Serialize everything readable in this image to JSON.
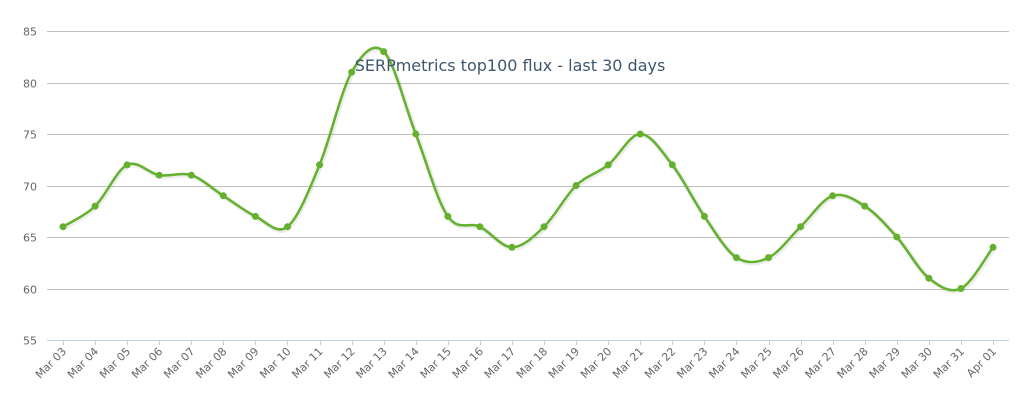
{
  "colors": {
    "series": "#63b12c",
    "grid": "#c0c0c0",
    "axis": "#c0d0e0",
    "title": "#3e576f",
    "tick_label": "#666666"
  },
  "chart_data": {
    "type": "line",
    "title": "SERPmetrics top100 flux - last 30 days",
    "xlabel": "",
    "ylabel": "",
    "ylim": [
      55,
      85
    ],
    "yticks": [
      "55",
      "60",
      "65",
      "70",
      "75",
      "80",
      "85"
    ],
    "grid": true,
    "smooth": true,
    "legend": "none",
    "categories": [
      "Mar 03",
      "Mar 04",
      "Mar 05",
      "Mar 06",
      "Mar 07",
      "Mar 08",
      "Mar 09",
      "Mar 10",
      "Mar 11",
      "Mar 12",
      "Mar 13",
      "Mar 14",
      "Mar 15",
      "Mar 16",
      "Mar 17",
      "Mar 18",
      "Mar 19",
      "Mar 20",
      "Mar 21",
      "Mar 22",
      "Mar 23",
      "Mar 24",
      "Mar 25",
      "Mar 26",
      "Mar 27",
      "Mar 28",
      "Mar 29",
      "Mar 30",
      "Mar 31",
      "Apr 01"
    ],
    "series": [
      {
        "values": [
          66,
          68,
          72,
          71,
          71,
          69,
          67,
          66,
          72,
          81,
          83,
          75,
          67,
          66,
          64,
          66,
          70,
          72,
          75,
          72,
          67,
          63,
          63,
          66,
          69,
          68,
          65,
          61,
          60,
          64
        ]
      }
    ]
  }
}
